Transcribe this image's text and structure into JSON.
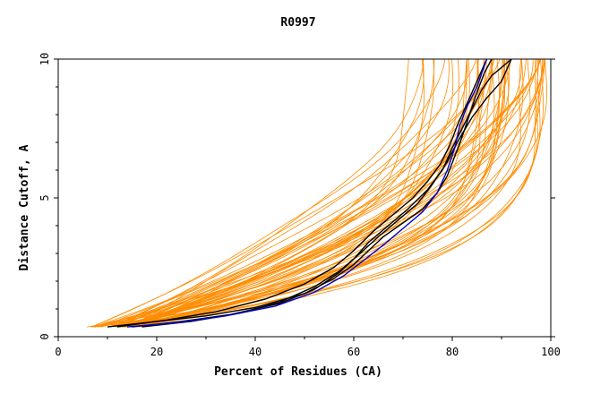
{
  "chart_data": {
    "type": "line",
    "title": "R0997",
    "xlabel": "Percent of Residues (CA)",
    "ylabel": "Distance Cutoff, A",
    "xlim": [
      0,
      100
    ],
    "ylim": [
      0,
      10
    ],
    "x_ticks": [
      0,
      20,
      40,
      60,
      80,
      100
    ],
    "y_ticks": [
      0,
      5,
      10
    ],
    "grid": false,
    "legend": "none",
    "colors": {
      "orange": "#ff8c00",
      "black": "#000000",
      "blue": "#0000cd",
      "axis": "#000000"
    },
    "series": [
      {
        "color": "black",
        "points": [
          [
            10,
            0.35
          ],
          [
            20,
            0.55
          ],
          [
            30,
            0.75
          ],
          [
            40,
            1.05
          ],
          [
            50,
            1.55
          ],
          [
            56,
            2.1
          ],
          [
            60,
            2.6
          ],
          [
            63,
            3.1
          ],
          [
            66,
            3.6
          ],
          [
            70,
            4.1
          ],
          [
            74,
            4.6
          ],
          [
            77,
            5.2
          ],
          [
            79,
            5.8
          ],
          [
            80.5,
            6.5
          ],
          [
            82,
            7.2
          ],
          [
            83.5,
            8.0
          ],
          [
            85,
            8.8
          ],
          [
            86.5,
            9.5
          ],
          [
            88,
            10
          ]
        ]
      },
      {
        "color": "black",
        "points": [
          [
            12,
            0.35
          ],
          [
            22,
            0.6
          ],
          [
            32,
            0.9
          ],
          [
            42,
            1.35
          ],
          [
            50,
            1.9
          ],
          [
            56,
            2.5
          ],
          [
            60,
            3.1
          ],
          [
            64,
            3.8
          ],
          [
            68,
            4.4
          ],
          [
            72,
            5.0
          ],
          [
            75,
            5.6
          ],
          [
            77.5,
            6.2
          ],
          [
            79.5,
            6.9
          ],
          [
            81,
            7.6
          ],
          [
            83,
            8.4
          ],
          [
            85,
            9.2
          ],
          [
            87,
            10
          ]
        ]
      },
      {
        "color": "black",
        "points": [
          [
            15,
            0.35
          ],
          [
            25,
            0.55
          ],
          [
            35,
            0.8
          ],
          [
            45,
            1.2
          ],
          [
            52,
            1.7
          ],
          [
            57,
            2.3
          ],
          [
            60,
            2.8
          ],
          [
            63,
            3.4
          ],
          [
            67,
            4.0
          ],
          [
            71,
            4.6
          ],
          [
            75,
            5.3
          ],
          [
            78,
            6.0
          ],
          [
            80,
            6.8
          ],
          [
            82,
            7.5
          ],
          [
            84,
            8.2
          ],
          [
            86,
            8.9
          ],
          [
            88,
            9.4
          ],
          [
            90,
            9.7
          ],
          [
            92,
            10
          ]
        ]
      },
      {
        "color": "black",
        "points": [
          [
            17,
            0.35
          ],
          [
            27,
            0.55
          ],
          [
            37,
            0.85
          ],
          [
            45,
            1.25
          ],
          [
            52,
            1.8
          ],
          [
            57,
            2.35
          ],
          [
            61,
            2.95
          ],
          [
            65,
            3.6
          ],
          [
            69,
            4.2
          ],
          [
            73,
            4.8
          ],
          [
            76,
            5.5
          ],
          [
            79,
            6.3
          ],
          [
            81,
            7.0
          ],
          [
            84,
            7.9
          ],
          [
            87,
            8.6
          ],
          [
            90,
            9.2
          ],
          [
            92,
            10
          ]
        ]
      },
      {
        "color": "blue",
        "points": [
          [
            14,
            0.35
          ],
          [
            24,
            0.5
          ],
          [
            34,
            0.75
          ],
          [
            44,
            1.1
          ],
          [
            52,
            1.6
          ],
          [
            58,
            2.2
          ],
          [
            62,
            2.75
          ],
          [
            66,
            3.3
          ],
          [
            70,
            3.9
          ],
          [
            74,
            4.5
          ],
          [
            77,
            5.2
          ],
          [
            79,
            6.0
          ],
          [
            80.5,
            6.8
          ],
          [
            81.5,
            7.6
          ],
          [
            83,
            8.3
          ],
          [
            85,
            9.0
          ],
          [
            87,
            10
          ]
        ]
      }
    ]
  }
}
